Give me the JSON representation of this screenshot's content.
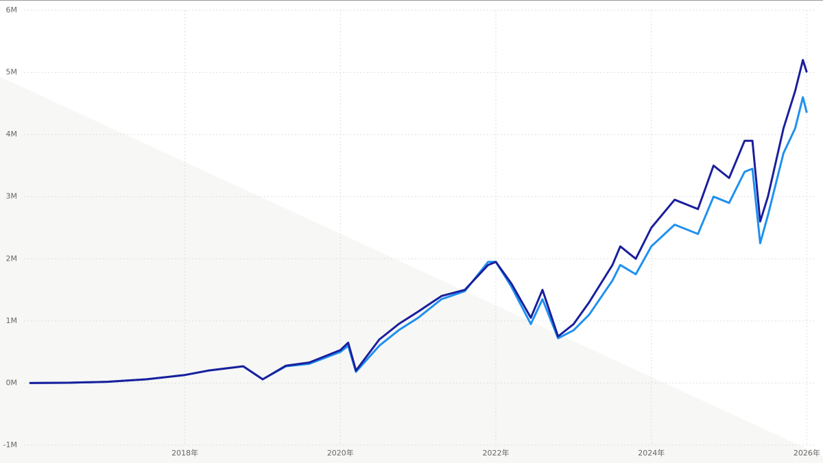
{
  "chart_data": {
    "type": "line",
    "x": [
      2016.0,
      2016.5,
      2017.0,
      2017.5,
      2018.0,
      2018.3,
      2018.75,
      2019.0,
      2019.3,
      2019.6,
      2020.0,
      2020.1,
      2020.2,
      2020.5,
      2020.75,
      2021.0,
      2021.3,
      2021.6,
      2021.9,
      2022.0,
      2022.2,
      2022.45,
      2022.6,
      2022.8,
      2023.0,
      2023.2,
      2023.5,
      2023.6,
      2023.8,
      2024.0,
      2024.3,
      2024.6,
      2024.8,
      2025.0,
      2025.1,
      2025.2,
      2025.3,
      2025.4,
      2025.5,
      2025.7,
      2025.85,
      2025.95,
      2026.0
    ],
    "series": [
      {
        "color": "#1a1f9c",
        "values": [
          0,
          5000,
          20000,
          60000,
          130000,
          200000,
          270000,
          60000,
          280000,
          330000,
          530000,
          650000,
          200000,
          700000,
          950000,
          1150000,
          1400000,
          1500000,
          1900000,
          1950000,
          1600000,
          1050000,
          1500000,
          750000,
          950000,
          1300000,
          1900000,
          2200000,
          2000000,
          2500000,
          2950000,
          2800000,
          3500000,
          3300000,
          3600000,
          3900000,
          3900000,
          2600000,
          3000000,
          4100000,
          4700000,
          5200000,
          5000000
        ]
      },
      {
        "color": "#1e90f0",
        "values": [
          0,
          5000,
          20000,
          60000,
          130000,
          200000,
          270000,
          60000,
          270000,
          310000,
          500000,
          600000,
          180000,
          600000,
          850000,
          1050000,
          1350000,
          1480000,
          1950000,
          1950000,
          1550000,
          950000,
          1350000,
          720000,
          850000,
          1100000,
          1650000,
          1900000,
          1750000,
          2200000,
          2550000,
          2400000,
          3000000,
          2900000,
          3150000,
          3400000,
          3450000,
          2250000,
          2700000,
          3700000,
          4100000,
          4600000,
          4350000
        ]
      }
    ],
    "xlim": [
      2015.93,
      2026.12
    ],
    "xticks": [
      {
        "value": 2018,
        "label": "2018年"
      },
      {
        "value": 2020,
        "label": "2020年"
      },
      {
        "value": 2022,
        "label": "2022年"
      },
      {
        "value": 2024,
        "label": "2024年"
      },
      {
        "value": 2026,
        "label": "2026年"
      }
    ],
    "ylim": [
      -1000000,
      6000000
    ],
    "yticks": [
      {
        "value": -1000000,
        "label": "-1M"
      },
      {
        "value": 0,
        "label": "0M"
      },
      {
        "value": 1000000,
        "label": "1M"
      },
      {
        "value": 2000000,
        "label": "2M"
      },
      {
        "value": 3000000,
        "label": "3M"
      },
      {
        "value": 4000000,
        "label": "4M"
      },
      {
        "value": 5000000,
        "label": "5M"
      },
      {
        "value": 6000000,
        "label": "6M"
      }
    ],
    "grid": true
  }
}
